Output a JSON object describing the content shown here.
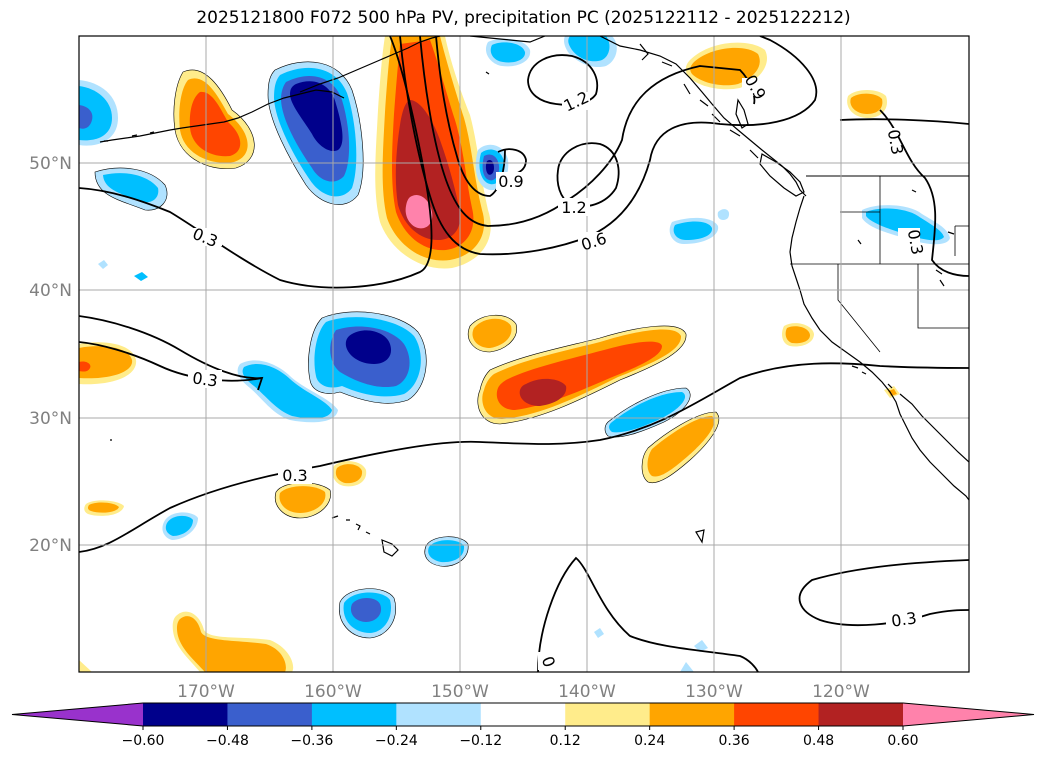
{
  "title": "2025121800 F072 500 hPa PV, precipitation PC (2025122112 - 2025122212)",
  "lat_labels": [
    "50°N",
    "40°N",
    "30°N",
    "20°N"
  ],
  "lon_labels": [
    "170°W",
    "160°W",
    "150°W",
    "140°W",
    "130°W",
    "120°W"
  ],
  "contour_labels": [
    "1.2",
    "0.9",
    "0.9",
    "1.2",
    "0.6",
    "0.3",
    "0.3",
    "0.3",
    "0.3",
    "0.3",
    "0.3",
    "0"
  ],
  "colorbar": {
    "ticks": [
      "−0.60",
      "−0.48",
      "−0.36",
      "−0.24",
      "−0.12",
      "0.12",
      "0.24",
      "0.36",
      "0.48",
      "0.60"
    ],
    "colors": [
      "#9932cc",
      "#00008b",
      "#3a5fcd",
      "#00bfff",
      "#b0e2ff",
      "#ffffff",
      "#ffec8b",
      "#ffa500",
      "#ff4500",
      "#b22222",
      "#ff82ab"
    ]
  }
}
